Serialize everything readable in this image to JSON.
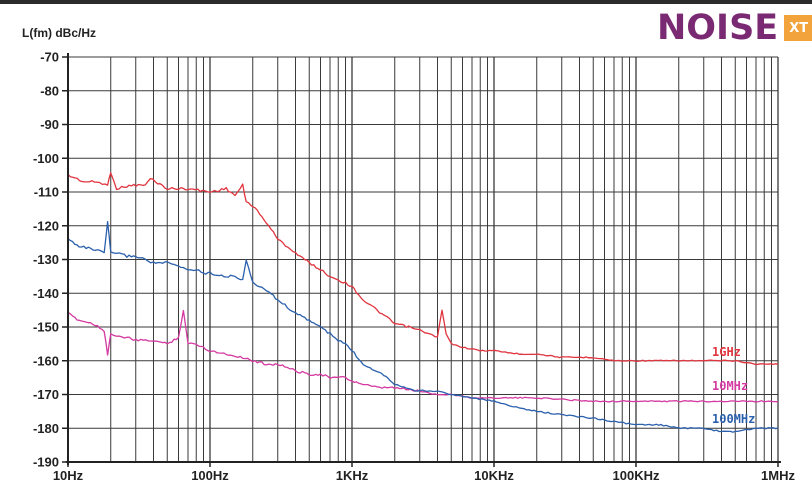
{
  "logo": {
    "main": "NOISE",
    "sub": "XT",
    "main_color": "#7a2a72",
    "sub_bg": "#f3a33b"
  },
  "chart_data": {
    "type": "line",
    "title": "",
    "ylabel": "L(fm) dBc/Hz",
    "xlabel": "",
    "x_scale": "log",
    "xlim": [
      10,
      1000000
    ],
    "ylim": [
      -190,
      -70
    ],
    "grid": true,
    "y_ticks": [
      -70,
      -80,
      -90,
      -100,
      -110,
      -120,
      -130,
      -140,
      -150,
      -160,
      -170,
      -180,
      -190
    ],
    "y_tick_labels": [
      "-70",
      "-80",
      "-90",
      "-100",
      "-110",
      "-120",
      "-130",
      "-140",
      "-150",
      "-160",
      "-170",
      "-180",
      "-190"
    ],
    "x_ticks": [
      10,
      100,
      1000,
      10000,
      100000,
      1000000
    ],
    "x_tick_labels": [
      "10Hz",
      "100Hz",
      "1KHz",
      "10KHz",
      "100KHz",
      "1MHz"
    ],
    "series": [
      {
        "name": "1GHz",
        "color": "#e0353f",
        "x": [
          10,
          13,
          16,
          19,
          20,
          22,
          28,
          35,
          38,
          50,
          70,
          100,
          130,
          150,
          170,
          180,
          200,
          260,
          300,
          400,
          500,
          600,
          700,
          800,
          900,
          1000,
          1200,
          1500,
          2000,
          2500,
          3000,
          4000,
          4300,
          4600,
          5000,
          6000,
          8000,
          10000,
          15000,
          20000,
          30000,
          50000,
          70000,
          100000,
          150000,
          200000,
          300000,
          500000,
          700000,
          1000000
        ],
        "y": [
          -105,
          -107,
          -107,
          -108,
          -104,
          -109,
          -108,
          -108,
          -106,
          -109,
          -109,
          -110,
          -109,
          -111,
          -108,
          -113,
          -114,
          -120,
          -124,
          -128,
          -131,
          -133,
          -135,
          -136,
          -137,
          -138,
          -142,
          -145,
          -149,
          -150,
          -151,
          -153,
          -145,
          -152,
          -155,
          -156,
          -157,
          -157,
          -158,
          -158,
          -159,
          -159,
          -160,
          -160,
          -160,
          -160,
          -160,
          -160,
          -161,
          -161
        ]
      },
      {
        "name": "10MHz",
        "color": "#d43aa1",
        "x": [
          10,
          12,
          15,
          18,
          19,
          20,
          22,
          26,
          30,
          40,
          50,
          60,
          65,
          70,
          80,
          100,
          130,
          170,
          200,
          250,
          300,
          350,
          400,
          500,
          600,
          700,
          800,
          900,
          1000,
          1200,
          1500,
          2000,
          3000,
          4000,
          5000,
          7000,
          10000,
          20000,
          50000,
          100000,
          200000,
          500000,
          1000000
        ],
        "y": [
          -146,
          -148,
          -149,
          -151,
          -158,
          -152,
          -153,
          -153,
          -154,
          -154,
          -155,
          -153,
          -145,
          -155,
          -155,
          -157,
          -158,
          -159,
          -160,
          -161,
          -161,
          -162,
          -163,
          -164,
          -164,
          -165,
          -165,
          -165,
          -166,
          -167,
          -168,
          -168,
          -169,
          -170,
          -170,
          -171,
          -171,
          -171,
          -172,
          -172,
          -172,
          -172,
          -172
        ]
      },
      {
        "name": "100MHz",
        "color": "#2b60ad",
        "x": [
          10,
          12,
          15,
          18,
          19,
          20,
          22,
          26,
          30,
          35,
          40,
          50,
          60,
          70,
          80,
          90,
          100,
          130,
          150,
          170,
          180,
          200,
          250,
          300,
          350,
          400,
          500,
          600,
          700,
          800,
          900,
          1000,
          1200,
          1500,
          1800,
          2000,
          2500,
          3000,
          4000,
          5000,
          7000,
          10000,
          15000,
          20000,
          30000,
          50000,
          70000,
          100000,
          150000,
          200000,
          300000,
          400000,
          500000,
          700000,
          1000000
        ],
        "y": [
          -124,
          -126,
          -127,
          -128,
          -119,
          -128,
          -128,
          -129,
          -129,
          -130,
          -131,
          -131,
          -132,
          -133,
          -133,
          -134,
          -134,
          -135,
          -135,
          -136,
          -130,
          -137,
          -139,
          -142,
          -144,
          -146,
          -148,
          -150,
          -152,
          -154,
          -155,
          -157,
          -161,
          -163,
          -165,
          -167,
          -168,
          -169,
          -169,
          -170,
          -171,
          -172,
          -174,
          -175,
          -176,
          -177,
          -178,
          -179,
          -179,
          -180,
          -180,
          -181,
          -181,
          -180,
          -180
        ]
      }
    ]
  }
}
